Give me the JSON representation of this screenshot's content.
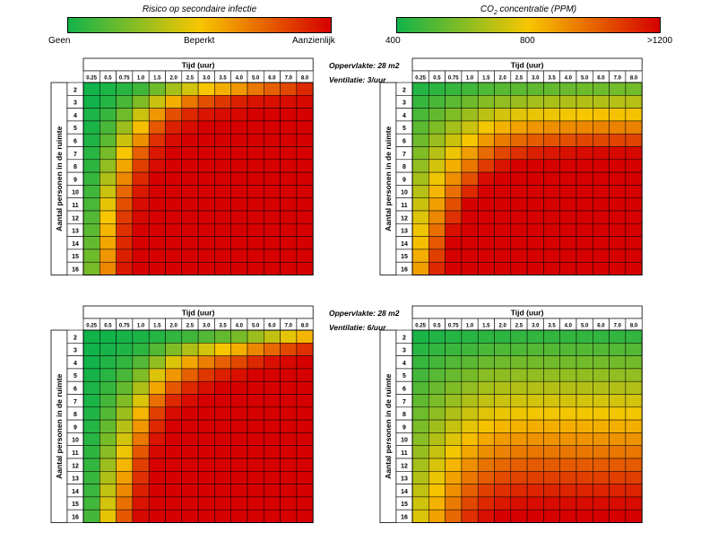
{
  "legends": {
    "risk": {
      "title": "Risico op secondaire infectie",
      "labels": [
        "Geen",
        "Beperkt",
        "Aanzienlijk"
      ],
      "colors": [
        "#12b34a",
        "#f7c600",
        "#d60000"
      ]
    },
    "co2": {
      "title_prefix": "CO",
      "title_sub": "2",
      "title_suffix": " concentratie (PPM)",
      "labels": [
        "400",
        "800",
        ">1200"
      ],
      "colors": [
        "#12b34a",
        "#f7c600",
        "#d60000"
      ]
    }
  },
  "panel_notes": [
    {
      "area": "Oppervlakte: 28 m2",
      "ventilation": "Ventilatie: 3/uur"
    },
    {
      "area": "Oppervlakte: 28 m2",
      "ventilation": "Ventilatie: 6/uur"
    }
  ],
  "chart_data": [
    {
      "id": "risk-3",
      "type": "heatmap",
      "title": "Risico op secondaire infectie",
      "subtitle": "Ventilatie: 3/uur",
      "xlabel": "Tijd (uur)",
      "ylabel": "Aantal personen in de ruimte",
      "x": [
        "0.25",
        "0.5",
        "0.75",
        "1.0",
        "1.5",
        "2.0",
        "2.5",
        "3.0",
        "3.5",
        "4.0",
        "5.0",
        "6.0",
        "7.0",
        "8.0"
      ],
      "y": [
        "2",
        "3",
        "4",
        "5",
        "6",
        "7",
        "8",
        "9",
        "10",
        "11",
        "12",
        "13",
        "14",
        "15",
        "16"
      ],
      "scale": "0 = geen, 1 = aanzienlijk",
      "values": [
        [
          0.0,
          0.02,
          0.05,
          0.1,
          0.2,
          0.32,
          0.42,
          0.5,
          0.56,
          0.62,
          0.7,
          0.76,
          0.82,
          0.9
        ],
        [
          0.0,
          0.04,
          0.12,
          0.24,
          0.4,
          0.56,
          0.7,
          0.8,
          0.86,
          0.92,
          0.95,
          0.96,
          0.97,
          0.98
        ],
        [
          0.02,
          0.08,
          0.2,
          0.4,
          0.62,
          0.8,
          0.9,
          0.95,
          0.97,
          0.98,
          1,
          1,
          1,
          1
        ],
        [
          0.02,
          0.12,
          0.3,
          0.52,
          0.78,
          0.92,
          0.97,
          1,
          1,
          1,
          1,
          1,
          1,
          1
        ],
        [
          0.03,
          0.16,
          0.4,
          0.64,
          0.88,
          0.97,
          1,
          1,
          1,
          1,
          1,
          1,
          1,
          1
        ],
        [
          0.05,
          0.22,
          0.5,
          0.76,
          0.94,
          1,
          1,
          1,
          1,
          1,
          1,
          1,
          1,
          1
        ],
        [
          0.06,
          0.28,
          0.58,
          0.84,
          0.97,
          1,
          1,
          1,
          1,
          1,
          1,
          1,
          1,
          1
        ],
        [
          0.08,
          0.34,
          0.66,
          0.9,
          1,
          1,
          1,
          1,
          1,
          1,
          1,
          1,
          1,
          1
        ],
        [
          0.1,
          0.4,
          0.74,
          0.94,
          1,
          1,
          1,
          1,
          1,
          1,
          1,
          1,
          1,
          1
        ],
        [
          0.12,
          0.46,
          0.8,
          0.97,
          1,
          1,
          1,
          1,
          1,
          1,
          1,
          1,
          1,
          1
        ],
        [
          0.14,
          0.5,
          0.85,
          0.98,
          1,
          1,
          1,
          1,
          1,
          1,
          1,
          1,
          1,
          1
        ],
        [
          0.16,
          0.54,
          0.88,
          1,
          1,
          1,
          1,
          1,
          1,
          1,
          1,
          1,
          1,
          1
        ],
        [
          0.18,
          0.58,
          0.9,
          1,
          1,
          1,
          1,
          1,
          1,
          1,
          1,
          1,
          1,
          1
        ],
        [
          0.2,
          0.62,
          0.92,
          1,
          1,
          1,
          1,
          1,
          1,
          1,
          1,
          1,
          1,
          1
        ],
        [
          0.22,
          0.66,
          0.94,
          1,
          1,
          1,
          1,
          1,
          1,
          1,
          1,
          1,
          1,
          1
        ]
      ]
    },
    {
      "id": "co2-3",
      "type": "heatmap",
      "title": "CO2 concentratie (PPM)",
      "subtitle": "Ventilatie: 3/uur",
      "xlabel": "Tijd (uur)",
      "ylabel": "Aantal personen in de ruimte",
      "x": [
        "0.25",
        "0.5",
        "0.75",
        "1.0",
        "1.5",
        "2.0",
        "2.5",
        "3.0",
        "3.5",
        "4.0",
        "5.0",
        "6.0",
        "7.0",
        "8.0"
      ],
      "y": [
        "2",
        "3",
        "4",
        "5",
        "6",
        "7",
        "8",
        "9",
        "10",
        "11",
        "12",
        "13",
        "14",
        "15",
        "16"
      ],
      "scale": "0 = 400 PPM, 1 = >1200 PPM",
      "values": [
        [
          0.04,
          0.06,
          0.08,
          0.1,
          0.13,
          0.15,
          0.16,
          0.17,
          0.18,
          0.19,
          0.2,
          0.2,
          0.21,
          0.21
        ],
        [
          0.08,
          0.12,
          0.16,
          0.2,
          0.25,
          0.28,
          0.3,
          0.32,
          0.33,
          0.34,
          0.35,
          0.35,
          0.36,
          0.36
        ],
        [
          0.12,
          0.18,
          0.24,
          0.3,
          0.37,
          0.42,
          0.45,
          0.47,
          0.48,
          0.49,
          0.5,
          0.51,
          0.51,
          0.51
        ],
        [
          0.16,
          0.24,
          0.32,
          0.4,
          0.49,
          0.55,
          0.59,
          0.62,
          0.64,
          0.65,
          0.66,
          0.67,
          0.67,
          0.67
        ],
        [
          0.2,
          0.3,
          0.4,
          0.5,
          0.61,
          0.69,
          0.74,
          0.77,
          0.79,
          0.8,
          0.82,
          0.82,
          0.83,
          0.83
        ],
        [
          0.24,
          0.36,
          0.48,
          0.6,
          0.73,
          0.82,
          0.88,
          0.92,
          0.94,
          0.96,
          0.97,
          0.98,
          0.98,
          0.98
        ],
        [
          0.28,
          0.42,
          0.56,
          0.7,
          0.85,
          0.95,
          1,
          1,
          1,
          1,
          1,
          1,
          1,
          1
        ],
        [
          0.32,
          0.48,
          0.64,
          0.8,
          0.97,
          1,
          1,
          1,
          1,
          1,
          1,
          1,
          1,
          1
        ],
        [
          0.36,
          0.54,
          0.72,
          0.9,
          1,
          1,
          1,
          1,
          1,
          1,
          1,
          1,
          1,
          1
        ],
        [
          0.4,
          0.6,
          0.8,
          1,
          1,
          1,
          1,
          1,
          1,
          1,
          1,
          1,
          1,
          1
        ],
        [
          0.44,
          0.66,
          0.88,
          1,
          1,
          1,
          1,
          1,
          1,
          1,
          1,
          1,
          1,
          1
        ],
        [
          0.48,
          0.72,
          0.96,
          1,
          1,
          1,
          1,
          1,
          1,
          1,
          1,
          1,
          1,
          1
        ],
        [
          0.52,
          0.78,
          1,
          1,
          1,
          1,
          1,
          1,
          1,
          1,
          1,
          1,
          1,
          1
        ],
        [
          0.56,
          0.84,
          1,
          1,
          1,
          1,
          1,
          1,
          1,
          1,
          1,
          1,
          1,
          1
        ],
        [
          0.6,
          0.9,
          1,
          1,
          1,
          1,
          1,
          1,
          1,
          1,
          1,
          1,
          1,
          1
        ]
      ]
    },
    {
      "id": "risk-6",
      "type": "heatmap",
      "title": "Risico op secondaire infectie",
      "subtitle": "Ventilatie: 6/uur",
      "xlabel": "Tijd (uur)",
      "ylabel": "Aantal personen in de ruimte",
      "x": [
        "0.25",
        "0.5",
        "0.75",
        "1.0",
        "1.5",
        "2.0",
        "2.5",
        "3.0",
        "3.5",
        "4.0",
        "5.0",
        "6.0",
        "7.0",
        "8.0"
      ],
      "y": [
        "2",
        "3",
        "4",
        "5",
        "6",
        "7",
        "8",
        "9",
        "10",
        "11",
        "12",
        "13",
        "14",
        "15",
        "16"
      ],
      "scale": "0 = geen, 1 = aanzienlijk",
      "values": [
        [
          0.0,
          0.0,
          0.01,
          0.02,
          0.04,
          0.07,
          0.1,
          0.14,
          0.18,
          0.22,
          0.3,
          0.38,
          0.46,
          0.54
        ],
        [
          0.0,
          0.01,
          0.03,
          0.06,
          0.14,
          0.24,
          0.34,
          0.42,
          0.5,
          0.56,
          0.66,
          0.74,
          0.82,
          0.88
        ],
        [
          0.0,
          0.03,
          0.07,
          0.14,
          0.28,
          0.44,
          0.58,
          0.68,
          0.76,
          0.82,
          0.9,
          0.96,
          0.98,
          1
        ],
        [
          0.01,
          0.05,
          0.12,
          0.24,
          0.44,
          0.62,
          0.76,
          0.86,
          0.92,
          0.96,
          1,
          1,
          1,
          1
        ],
        [
          0.02,
          0.08,
          0.18,
          0.34,
          0.58,
          0.78,
          0.9,
          0.96,
          1,
          1,
          1,
          1,
          1,
          1
        ],
        [
          0.02,
          0.11,
          0.24,
          0.44,
          0.72,
          0.9,
          0.97,
          1,
          1,
          1,
          1,
          1,
          1,
          1
        ],
        [
          0.03,
          0.14,
          0.3,
          0.54,
          0.84,
          0.97,
          1,
          1,
          1,
          1,
          1,
          1,
          1,
          1
        ],
        [
          0.04,
          0.18,
          0.36,
          0.62,
          0.9,
          1,
          1,
          1,
          1,
          1,
          1,
          1,
          1,
          1
        ],
        [
          0.05,
          0.22,
          0.42,
          0.7,
          0.95,
          1,
          1,
          1,
          1,
          1,
          1,
          1,
          1,
          1
        ],
        [
          0.06,
          0.26,
          0.48,
          0.78,
          0.98,
          1,
          1,
          1,
          1,
          1,
          1,
          1,
          1,
          1
        ],
        [
          0.07,
          0.3,
          0.54,
          0.84,
          1,
          1,
          1,
          1,
          1,
          1,
          1,
          1,
          1,
          1
        ],
        [
          0.08,
          0.34,
          0.6,
          0.88,
          1,
          1,
          1,
          1,
          1,
          1,
          1,
          1,
          1,
          1
        ],
        [
          0.09,
          0.38,
          0.66,
          0.92,
          1,
          1,
          1,
          1,
          1,
          1,
          1,
          1,
          1,
          1
        ],
        [
          0.1,
          0.42,
          0.72,
          0.95,
          1,
          1,
          1,
          1,
          1,
          1,
          1,
          1,
          1,
          1
        ],
        [
          0.11,
          0.46,
          0.78,
          0.98,
          1,
          1,
          1,
          1,
          1,
          1,
          1,
          1,
          1,
          1
        ]
      ]
    },
    {
      "id": "co2-6",
      "type": "heatmap",
      "title": "CO2 concentratie (PPM)",
      "subtitle": "Ventilatie: 6/uur",
      "xlabel": "Tijd (uur)",
      "ylabel": "Aantal personen in de ruimte",
      "x": [
        "0.25",
        "0.5",
        "0.75",
        "1.0",
        "1.5",
        "2.0",
        "2.5",
        "3.0",
        "3.5",
        "4.0",
        "5.0",
        "6.0",
        "7.0",
        "8.0"
      ],
      "y": [
        "2",
        "3",
        "4",
        "5",
        "6",
        "7",
        "8",
        "9",
        "10",
        "11",
        "12",
        "13",
        "14",
        "15",
        "16"
      ],
      "scale": "0 = 400 PPM, 1 = >1200 PPM",
      "values": [
        [
          0.02,
          0.03,
          0.04,
          0.05,
          0.06,
          0.06,
          0.07,
          0.07,
          0.07,
          0.07,
          0.07,
          0.07,
          0.07,
          0.07
        ],
        [
          0.05,
          0.07,
          0.09,
          0.1,
          0.12,
          0.13,
          0.13,
          0.14,
          0.14,
          0.14,
          0.14,
          0.14,
          0.14,
          0.14
        ],
        [
          0.08,
          0.11,
          0.14,
          0.16,
          0.19,
          0.2,
          0.21,
          0.21,
          0.21,
          0.21,
          0.21,
          0.21,
          0.21,
          0.21
        ],
        [
          0.11,
          0.15,
          0.19,
          0.22,
          0.26,
          0.27,
          0.28,
          0.28,
          0.28,
          0.28,
          0.28,
          0.28,
          0.28,
          0.28
        ],
        [
          0.14,
          0.19,
          0.24,
          0.28,
          0.32,
          0.34,
          0.35,
          0.35,
          0.35,
          0.35,
          0.35,
          0.35,
          0.35,
          0.35
        ],
        [
          0.17,
          0.23,
          0.29,
          0.34,
          0.38,
          0.4,
          0.41,
          0.42,
          0.42,
          0.42,
          0.42,
          0.42,
          0.42,
          0.42
        ],
        [
          0.2,
          0.27,
          0.34,
          0.4,
          0.45,
          0.47,
          0.48,
          0.49,
          0.49,
          0.49,
          0.49,
          0.49,
          0.49,
          0.49
        ],
        [
          0.23,
          0.31,
          0.39,
          0.46,
          0.51,
          0.54,
          0.55,
          0.56,
          0.56,
          0.56,
          0.56,
          0.56,
          0.56,
          0.56
        ],
        [
          0.26,
          0.35,
          0.44,
          0.52,
          0.58,
          0.61,
          0.62,
          0.63,
          0.63,
          0.63,
          0.63,
          0.63,
          0.63,
          0.63
        ],
        [
          0.29,
          0.39,
          0.49,
          0.58,
          0.64,
          0.67,
          0.69,
          0.7,
          0.7,
          0.7,
          0.7,
          0.7,
          0.7,
          0.7
        ],
        [
          0.32,
          0.43,
          0.54,
          0.64,
          0.71,
          0.74,
          0.76,
          0.77,
          0.77,
          0.77,
          0.77,
          0.77,
          0.77,
          0.77
        ],
        [
          0.35,
          0.47,
          0.59,
          0.7,
          0.77,
          0.81,
          0.83,
          0.84,
          0.84,
          0.84,
          0.84,
          0.84,
          0.84,
          0.84
        ],
        [
          0.38,
          0.51,
          0.64,
          0.76,
          0.84,
          0.88,
          0.9,
          0.91,
          0.91,
          0.91,
          0.91,
          0.91,
          0.91,
          0.91
        ],
        [
          0.41,
          0.55,
          0.69,
          0.82,
          0.9,
          0.94,
          0.96,
          0.97,
          0.97,
          0.97,
          0.97,
          0.97,
          0.97,
          0.97
        ],
        [
          0.44,
          0.59,
          0.74,
          0.88,
          0.96,
          1,
          1,
          1,
          1,
          1,
          1,
          1,
          1,
          1
        ]
      ]
    }
  ]
}
